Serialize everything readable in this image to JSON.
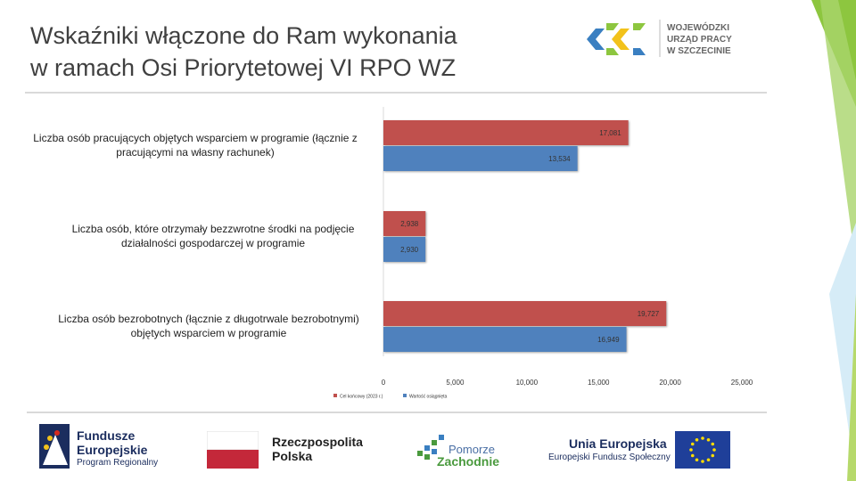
{
  "title": {
    "line1": "Wskaźniki włączone do Ram wykonania",
    "line2": "w ramach Osi Priorytetowej VI RPO WZ"
  },
  "header_logo": {
    "line1": "WOJEWÓDZKI",
    "line2": "URZĄD PRACY",
    "line3": "W SZCZECINIE"
  },
  "chart_data": {
    "type": "bar",
    "orientation": "horizontal",
    "categories": [
      "Liczba osób pracujących objętych wsparciem w programie (łącznie z pracującymi na własny rachunek)",
      "Liczba osób, które otrzymały bezzwrotne środki na podjęcie działalności gospodarczej w programie",
      "Liczba osób bezrobotnych (łącznie z długotrwale bezrobotnymi) objętych wsparciem w programie"
    ],
    "category_lines": [
      [
        "Liczba osób pracujących objętych wsparciem w programie (łącznie z",
        "pracującymi na własny rachunek)"
      ],
      [
        "Liczba osób, które otrzymały bezzwrotne środki na podjęcie",
        "działalności gospodarczej w programie"
      ],
      [
        "Liczba osób bezrobotnych (łącznie z długotrwale bezrobotnymi)",
        "objętych wsparciem w programie"
      ]
    ],
    "series": [
      {
        "name": "Cel końcowy (2023 r.)",
        "color": "#c0504d",
        "values": [
          17081,
          2938,
          19727
        ],
        "labels": [
          "17,081",
          "2,938",
          "19,727"
        ]
      },
      {
        "name": "Wartość osiągnięta",
        "color": "#4f81bd",
        "values": [
          13534,
          2930,
          16949
        ],
        "labels": [
          "13,534",
          "2,930",
          "16,949"
        ]
      }
    ],
    "xlim": [
      0,
      25000
    ],
    "x_ticks": [
      "0",
      "5,000",
      "10,000",
      "15,000",
      "20,000",
      "25,000"
    ],
    "x_tick_values": [
      0,
      5000,
      10000,
      15000,
      20000,
      25000
    ],
    "legend_position": "bottom",
    "grid": false
  },
  "footer": {
    "fe_title1": "Fundusze",
    "fe_title2": "Europejskie",
    "fe_sub": "Program Regionalny",
    "rp_line1": "Rzeczpospolita",
    "rp_line2": "Polska",
    "pz_line1": "Pomorze",
    "pz_line2": "Zachodnie",
    "ue_title": "Unia Europejska",
    "ue_sub": "Europejski Fundusz Społeczny"
  },
  "colors": {
    "accent_green": "#8dc63f",
    "title": "#404040"
  }
}
